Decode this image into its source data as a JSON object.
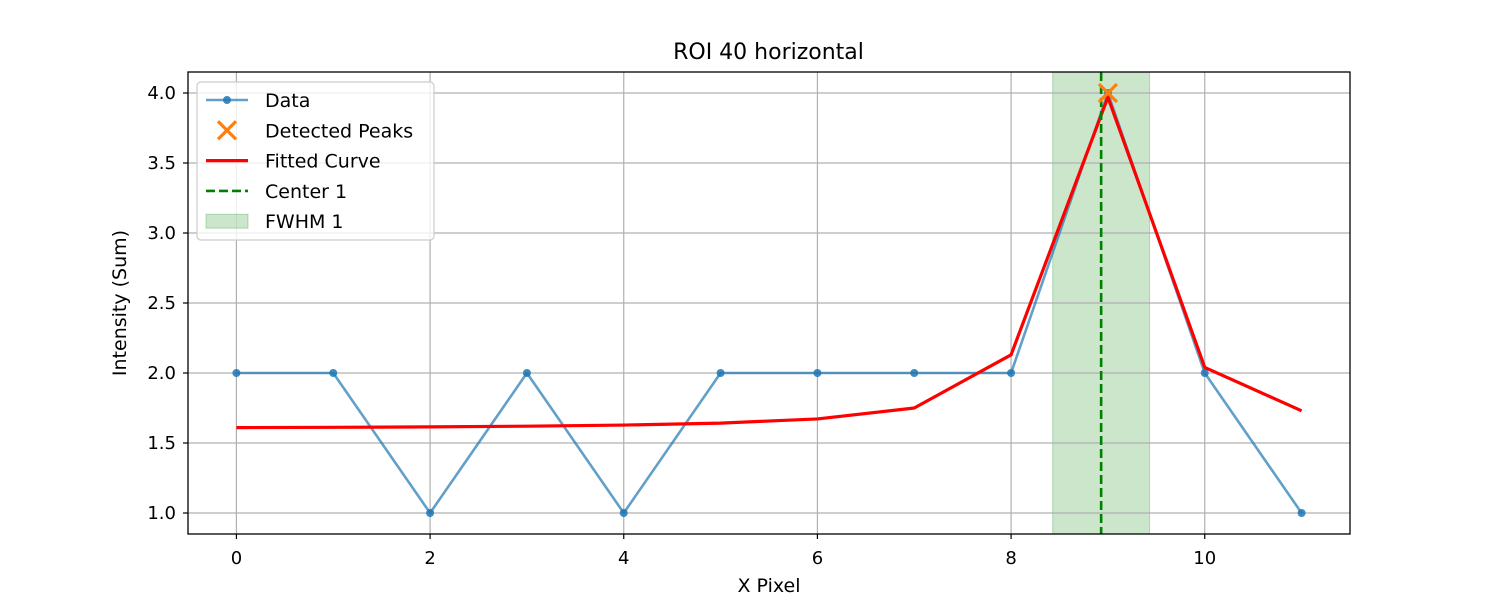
{
  "chart_data": {
    "type": "line",
    "title": "ROI 40 horizontal",
    "xlabel": "X Pixel",
    "ylabel": "Intensity (Sum)",
    "xlim": [
      -0.5,
      11.5
    ],
    "ylim": [
      0.85,
      4.15
    ],
    "xticks": [
      0,
      2,
      4,
      6,
      8,
      10
    ],
    "xtick_labels": [
      "0",
      "2",
      "4",
      "6",
      "8",
      "10"
    ],
    "yticks": [
      1.0,
      1.5,
      2.0,
      2.5,
      3.0,
      3.5,
      4.0
    ],
    "ytick_labels": [
      "1.0",
      "1.5",
      "2.0",
      "2.5",
      "3.0",
      "3.5",
      "4.0"
    ],
    "grid": true,
    "legend_position": "top-left",
    "series": [
      {
        "name": "Data",
        "kind": "line-markers",
        "color": "#1f77b4",
        "x": [
          0,
          1,
          2,
          3,
          4,
          5,
          6,
          7,
          8,
          9,
          10,
          11
        ],
        "y": [
          2,
          2,
          1,
          2,
          1,
          2,
          2,
          2,
          2,
          4,
          2,
          1
        ]
      },
      {
        "name": "Detected Peaks",
        "kind": "scatter-x",
        "color": "#ff7f0e",
        "x": [
          9
        ],
        "y": [
          4
        ]
      },
      {
        "name": "Fitted Curve",
        "kind": "line",
        "color": "#ff0000",
        "x": [
          0,
          1,
          2,
          3,
          4,
          5,
          6,
          7,
          8,
          9,
          10,
          11
        ],
        "y": [
          1.61,
          1.612,
          1.615,
          1.62,
          1.628,
          1.642,
          1.672,
          1.75,
          2.13,
          3.97,
          2.04,
          1.73
        ]
      },
      {
        "name": "Center 1",
        "kind": "vline-dashed",
        "color": "#008000",
        "x": 8.93
      },
      {
        "name": "FWHM 1",
        "kind": "vspan",
        "color": "#008000",
        "range": [
          8.43,
          9.43
        ]
      }
    ]
  }
}
